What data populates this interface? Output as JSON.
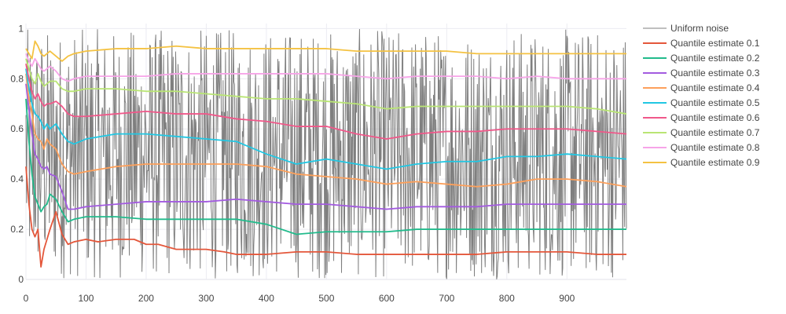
{
  "chart_data": {
    "type": "line",
    "title": "",
    "xlabel": "",
    "ylabel": "",
    "xlim": [
      0,
      999
    ],
    "ylim": [
      0,
      1.02
    ],
    "grid": true,
    "legend_position": "right",
    "x_ticks": [
      0,
      100,
      200,
      300,
      400,
      500,
      600,
      700,
      800,
      900
    ],
    "y_ticks": [
      0,
      0.2,
      0.4,
      0.6,
      0.8,
      1
    ],
    "noise": {
      "name": "Uniform noise",
      "color": "#7f7f7f",
      "length": 1000,
      "range": [
        0,
        1
      ]
    },
    "series": [
      {
        "name": "Quantile estimate 0.1",
        "color": "#e4573b",
        "x": [
          0,
          5,
          10,
          15,
          20,
          25,
          30,
          35,
          40,
          50,
          60,
          70,
          80,
          100,
          120,
          150,
          180,
          200,
          220,
          250,
          300,
          330,
          350,
          400,
          450,
          500,
          550,
          600,
          650,
          700,
          750,
          800,
          850,
          900,
          950,
          999
        ],
        "values": [
          0.45,
          0.3,
          0.2,
          0.17,
          0.2,
          0.05,
          0.12,
          0.16,
          0.2,
          0.27,
          0.18,
          0.14,
          0.15,
          0.16,
          0.15,
          0.16,
          0.16,
          0.14,
          0.14,
          0.12,
          0.12,
          0.11,
          0.1,
          0.1,
          0.11,
          0.11,
          0.1,
          0.1,
          0.1,
          0.1,
          0.1,
          0.11,
          0.11,
          0.11,
          0.1,
          0.1
        ]
      },
      {
        "name": "Quantile estimate 0.2",
        "color": "#22bb8c",
        "x": [
          0,
          5,
          10,
          15,
          20,
          25,
          30,
          35,
          40,
          50,
          60,
          70,
          80,
          100,
          150,
          200,
          250,
          300,
          350,
          400,
          450,
          500,
          550,
          600,
          650,
          700,
          750,
          800,
          850,
          900,
          950,
          999
        ],
        "values": [
          0.72,
          0.55,
          0.42,
          0.33,
          0.3,
          0.27,
          0.29,
          0.3,
          0.34,
          0.32,
          0.27,
          0.23,
          0.24,
          0.25,
          0.25,
          0.24,
          0.24,
          0.24,
          0.24,
          0.22,
          0.18,
          0.19,
          0.19,
          0.19,
          0.2,
          0.2,
          0.2,
          0.2,
          0.2,
          0.2,
          0.2,
          0.2
        ]
      },
      {
        "name": "Quantile estimate 0.3",
        "color": "#a35be0",
        "x": [
          0,
          5,
          10,
          15,
          20,
          25,
          30,
          35,
          40,
          50,
          60,
          70,
          80,
          100,
          150,
          200,
          250,
          300,
          350,
          400,
          450,
          500,
          550,
          600,
          650,
          700,
          750,
          800,
          850,
          900,
          950,
          999
        ],
        "values": [
          0.78,
          0.68,
          0.58,
          0.5,
          0.48,
          0.45,
          0.44,
          0.45,
          0.42,
          0.41,
          0.35,
          0.28,
          0.28,
          0.29,
          0.3,
          0.31,
          0.31,
          0.31,
          0.32,
          0.31,
          0.3,
          0.3,
          0.29,
          0.28,
          0.29,
          0.29,
          0.29,
          0.3,
          0.3,
          0.3,
          0.3,
          0.3
        ]
      },
      {
        "name": "Quantile estimate 0.4",
        "color": "#fda05b",
        "x": [
          0,
          5,
          10,
          15,
          20,
          25,
          30,
          35,
          40,
          50,
          60,
          70,
          80,
          100,
          150,
          200,
          250,
          300,
          350,
          400,
          450,
          500,
          550,
          600,
          650,
          700,
          750,
          800,
          850,
          900,
          950,
          999
        ],
        "values": [
          0.82,
          0.72,
          0.66,
          0.58,
          0.56,
          0.55,
          0.52,
          0.56,
          0.54,
          0.52,
          0.46,
          0.43,
          0.42,
          0.43,
          0.45,
          0.46,
          0.46,
          0.46,
          0.46,
          0.45,
          0.42,
          0.41,
          0.4,
          0.38,
          0.39,
          0.38,
          0.37,
          0.38,
          0.4,
          0.4,
          0.39,
          0.37
        ]
      },
      {
        "name": "Quantile estimate 0.5",
        "color": "#21c7e3",
        "x": [
          0,
          5,
          10,
          15,
          20,
          25,
          30,
          35,
          40,
          50,
          60,
          70,
          80,
          100,
          150,
          200,
          250,
          300,
          350,
          400,
          450,
          500,
          550,
          600,
          650,
          700,
          750,
          800,
          850,
          900,
          950,
          999
        ],
        "values": [
          0.84,
          0.76,
          0.7,
          0.66,
          0.65,
          0.63,
          0.6,
          0.62,
          0.6,
          0.62,
          0.58,
          0.55,
          0.54,
          0.56,
          0.58,
          0.58,
          0.57,
          0.56,
          0.55,
          0.5,
          0.46,
          0.48,
          0.46,
          0.44,
          0.46,
          0.47,
          0.47,
          0.49,
          0.49,
          0.5,
          0.49,
          0.48
        ]
      },
      {
        "name": "Quantile estimate 0.6",
        "color": "#f0588a",
        "x": [
          0,
          5,
          10,
          15,
          20,
          25,
          30,
          35,
          40,
          50,
          60,
          70,
          80,
          100,
          150,
          200,
          250,
          300,
          350,
          400,
          450,
          500,
          550,
          600,
          650,
          700,
          750,
          800,
          850,
          900,
          950,
          999
        ],
        "values": [
          0.86,
          0.8,
          0.75,
          0.72,
          0.74,
          0.71,
          0.69,
          0.7,
          0.7,
          0.71,
          0.69,
          0.66,
          0.65,
          0.65,
          0.66,
          0.67,
          0.66,
          0.66,
          0.64,
          0.63,
          0.61,
          0.61,
          0.58,
          0.56,
          0.58,
          0.59,
          0.59,
          0.6,
          0.6,
          0.6,
          0.59,
          0.58
        ]
      },
      {
        "name": "Quantile estimate 0.7",
        "color": "#b9e574",
        "x": [
          0,
          5,
          10,
          15,
          20,
          25,
          30,
          35,
          40,
          50,
          60,
          70,
          80,
          100,
          150,
          200,
          250,
          300,
          350,
          400,
          450,
          500,
          550,
          600,
          650,
          700,
          750,
          800,
          850,
          900,
          950,
          999
        ],
        "values": [
          0.88,
          0.84,
          0.8,
          0.78,
          0.82,
          0.79,
          0.77,
          0.78,
          0.79,
          0.79,
          0.76,
          0.75,
          0.75,
          0.76,
          0.76,
          0.75,
          0.75,
          0.74,
          0.73,
          0.72,
          0.72,
          0.71,
          0.7,
          0.68,
          0.69,
          0.69,
          0.69,
          0.69,
          0.69,
          0.69,
          0.68,
          0.66
        ]
      },
      {
        "name": "Quantile estimate 0.8",
        "color": "#f7a4e8",
        "x": [
          0,
          5,
          10,
          15,
          20,
          25,
          30,
          35,
          40,
          50,
          60,
          70,
          80,
          100,
          150,
          200,
          250,
          300,
          350,
          400,
          450,
          500,
          550,
          600,
          650,
          700,
          750,
          800,
          850,
          900,
          950,
          999
        ],
        "values": [
          0.9,
          0.87,
          0.85,
          0.88,
          0.86,
          0.84,
          0.83,
          0.84,
          0.85,
          0.83,
          0.8,
          0.79,
          0.8,
          0.81,
          0.81,
          0.81,
          0.82,
          0.82,
          0.82,
          0.82,
          0.82,
          0.82,
          0.81,
          0.8,
          0.81,
          0.81,
          0.81,
          0.8,
          0.81,
          0.8,
          0.8,
          0.8
        ]
      },
      {
        "name": "Quantile estimate 0.9",
        "color": "#f4c242",
        "x": [
          0,
          5,
          10,
          15,
          20,
          25,
          30,
          35,
          40,
          50,
          60,
          70,
          80,
          100,
          150,
          200,
          250,
          300,
          350,
          400,
          450,
          500,
          550,
          600,
          650,
          700,
          750,
          800,
          850,
          900,
          950,
          999
        ],
        "values": [
          0.92,
          0.9,
          0.88,
          0.95,
          0.93,
          0.9,
          0.89,
          0.9,
          0.91,
          0.89,
          0.87,
          0.89,
          0.9,
          0.91,
          0.92,
          0.92,
          0.93,
          0.92,
          0.92,
          0.92,
          0.92,
          0.92,
          0.91,
          0.91,
          0.91,
          0.91,
          0.9,
          0.9,
          0.9,
          0.9,
          0.9,
          0.9
        ]
      }
    ]
  }
}
